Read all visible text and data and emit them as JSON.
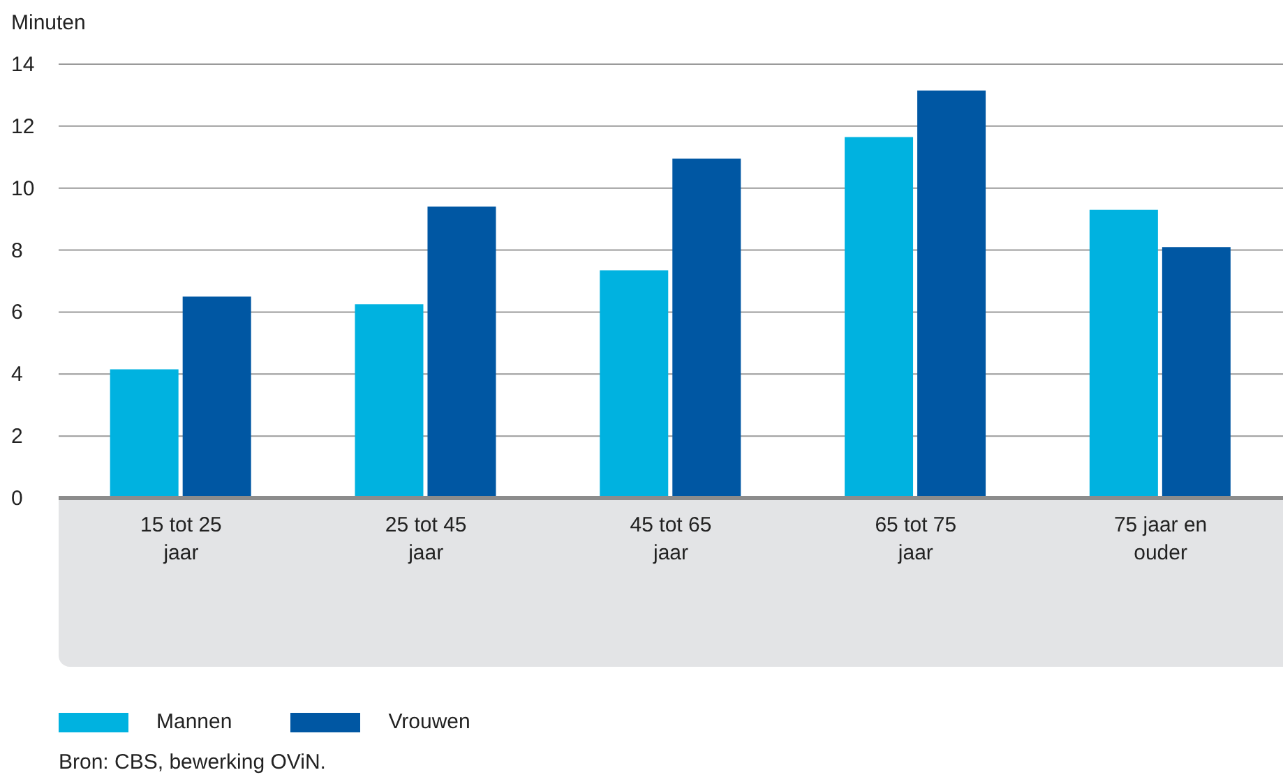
{
  "chart_data": {
    "type": "bar",
    "ylabel": "Minuten",
    "categories": [
      "15 tot 25 jaar",
      "25 tot 45 jaar",
      "45 tot 65 jaar",
      "65 tot 75 jaar",
      "75 jaar en ouder"
    ],
    "series": [
      {
        "name": "Mannen",
        "color": "#00b2e0",
        "values": [
          4.15,
          6.25,
          7.35,
          11.65,
          9.3
        ]
      },
      {
        "name": "Vrouwen",
        "color": "#0057a3",
        "values": [
          6.5,
          9.4,
          10.95,
          13.15,
          8.1
        ]
      }
    ],
    "ylim": [
      0,
      14
    ],
    "yticks": [
      0,
      2,
      4,
      6,
      8,
      10,
      12,
      14
    ],
    "grid": "y",
    "legend": "bottom",
    "annotations": [
      "Bron: CBS, bewerking OViN."
    ]
  }
}
